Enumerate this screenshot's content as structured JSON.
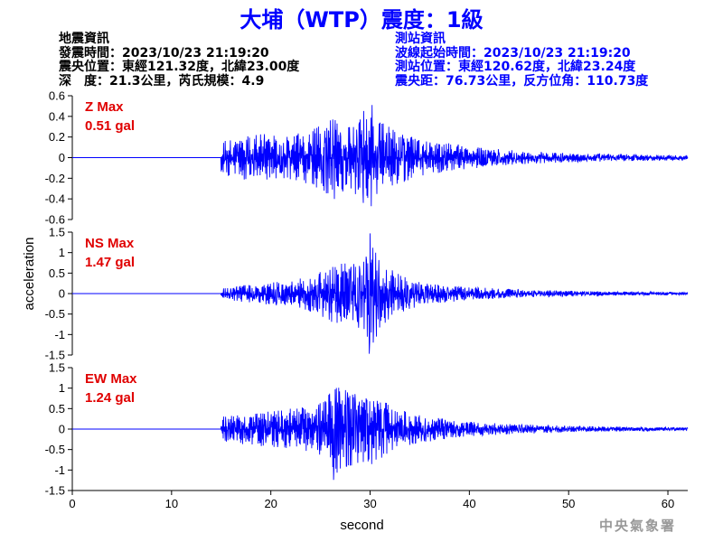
{
  "title": "大埔（WTP）震度：1級",
  "quake_info": {
    "heading": "地震資訊",
    "time": "發震時間：2023/10/23 21:19:20",
    "location": "震央位置：東經121.32度，北緯23.00度",
    "depth": "深　度：21.3公里，芮氏規模：4.9"
  },
  "station_info": {
    "heading": "測站資訊",
    "wave_start": "波線起始時間：2023/10/23 21:19:20",
    "location": "測站位置：東經120.62度，北緯23.24度",
    "distance": "震央距：76.73公里，反方位角：110.73度"
  },
  "footer": "中央氣象署",
  "colors": {
    "title": "#0000ff",
    "trace": "#0000ff",
    "max_label": "#e00000",
    "station_info": "#0000ff"
  },
  "chart_data": [
    {
      "type": "line",
      "component": "Z",
      "max_label": "Z Max",
      "max_value": "0.51 gal",
      "ylim": [
        -0.6,
        0.6
      ],
      "yticks": [
        -0.6,
        -0.4,
        -0.2,
        0,
        0.2,
        0.4,
        0.6
      ],
      "ytick_labels": [
        "-0.6",
        "-0.4",
        "-0.2",
        "0",
        "0.2",
        "0.4",
        "0.6"
      ],
      "onset_s": 15.0,
      "envelope": [
        [
          15,
          0.14
        ],
        [
          16,
          0.2
        ],
        [
          18,
          0.22
        ],
        [
          20,
          0.24
        ],
        [
          22,
          0.22
        ],
        [
          24,
          0.26
        ],
        [
          26,
          0.38
        ],
        [
          28,
          0.36
        ],
        [
          29,
          0.42
        ],
        [
          30,
          0.51
        ],
        [
          31,
          0.35
        ],
        [
          33,
          0.26
        ],
        [
          35,
          0.18
        ],
        [
          38,
          0.14
        ],
        [
          42,
          0.09
        ],
        [
          46,
          0.06
        ],
        [
          50,
          0.045
        ],
        [
          55,
          0.035
        ],
        [
          62,
          0.025
        ]
      ],
      "peak": {
        "t": 30.2,
        "value": 0.51
      },
      "trough": {
        "t": 26.4,
        "value": -0.4
      }
    },
    {
      "type": "line",
      "component": "NS",
      "max_label": "NS Max",
      "max_value": "1.47 gal",
      "ylim": [
        -1.5,
        1.5
      ],
      "yticks": [
        -1.5,
        -1,
        -0.5,
        0,
        0.5,
        1,
        1.5
      ],
      "ytick_labels": [
        "-1.5",
        "-1",
        "-0.5",
        "0",
        "0.5",
        "1",
        "1.5"
      ],
      "onset_s": 15.0,
      "envelope": [
        [
          15,
          0.12
        ],
        [
          17,
          0.2
        ],
        [
          20,
          0.28
        ],
        [
          22,
          0.3
        ],
        [
          24,
          0.45
        ],
        [
          26,
          0.7
        ],
        [
          28,
          0.75
        ],
        [
          29.5,
          0.9
        ],
        [
          30,
          1.47
        ],
        [
          31,
          0.85
        ],
        [
          32,
          0.6
        ],
        [
          34,
          0.4
        ],
        [
          36,
          0.25
        ],
        [
          40,
          0.16
        ],
        [
          45,
          0.1
        ],
        [
          50,
          0.07
        ],
        [
          55,
          0.05
        ],
        [
          62,
          0.035
        ]
      ],
      "peak": {
        "t": 30.0,
        "value": 1.47
      },
      "trough": {
        "t": 29.9,
        "value": -1.47
      }
    },
    {
      "type": "line",
      "component": "EW",
      "max_label": "EW Max",
      "max_value": "1.24 gal",
      "ylim": [
        -1.5,
        1.5
      ],
      "yticks": [
        -1.5,
        -1,
        -0.5,
        0,
        0.5,
        1,
        1.5
      ],
      "ytick_labels": [
        "-1.5",
        "-1",
        "-0.5",
        "0",
        "0.5",
        "1",
        "1.5"
      ],
      "onset_s": 15.0,
      "envelope": [
        [
          15,
          0.3
        ],
        [
          16,
          0.35
        ],
        [
          18,
          0.38
        ],
        [
          20,
          0.45
        ],
        [
          22,
          0.5
        ],
        [
          24,
          0.55
        ],
        [
          25.5,
          0.8
        ],
        [
          26.5,
          1.24
        ],
        [
          27.5,
          0.95
        ],
        [
          29,
          0.85
        ],
        [
          30,
          0.9
        ],
        [
          32,
          0.6
        ],
        [
          34,
          0.4
        ],
        [
          36,
          0.3
        ],
        [
          40,
          0.18
        ],
        [
          45,
          0.12
        ],
        [
          50,
          0.08
        ],
        [
          55,
          0.06
        ],
        [
          62,
          0.04
        ]
      ],
      "peak": {
        "t": 27.5,
        "value": 0.95
      },
      "trough": {
        "t": 26.3,
        "value": -1.24
      }
    }
  ],
  "xaxis": {
    "label": "second",
    "xlim": [
      0,
      62
    ],
    "xticks": [
      0,
      10,
      20,
      30,
      40,
      50,
      60
    ],
    "xtick_labels": [
      "0",
      "10",
      "20",
      "30",
      "40",
      "50",
      "60"
    ]
  },
  "yaxis_label": "acceleration"
}
